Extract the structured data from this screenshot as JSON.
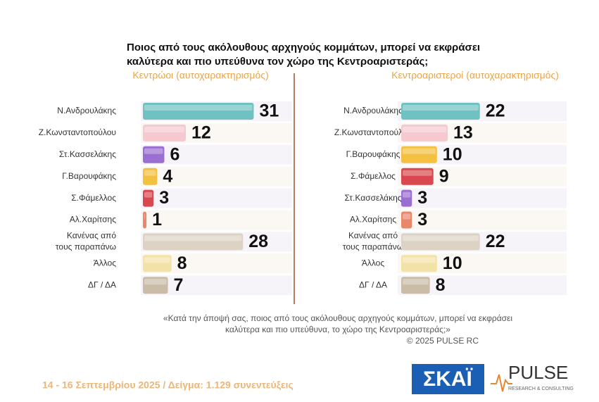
{
  "title": [
    "Ποιος από τους ακόλουθους αρχηγούς κομμάτων, μπορεί να εκφράσει",
    "καλύτερα και πιο υπεύθυνα τον χώρο της Κεντροαριστεράς;"
  ],
  "question": [
    "«Κατά την άποψή σας, ποιος από τους ακόλουθους αρχηγούς κομμάτων, μπορεί να εκφράσει",
    "καλύτερα και πιο υπεύθυνα, το χώρο της Κεντροαριστεράς;»"
  ],
  "copyright": "©  2025  PULSE RC",
  "footer": "14 - 16 Σεπτεμβρίου 2025  /  Δείγμα:  1.129 συνεντεύξεις",
  "logo_skai": "ΣΚΑΪ",
  "logo_pulse": "PULSE",
  "logo_pulse_sub": "RESEARCH & CONSULTING",
  "chart_data": [
    {
      "type": "bar",
      "orientation": "horizontal",
      "title": "Κεντρώοι  (αυτοχαρακτηρισμός)",
      "categories": [
        "Ν.Ανδρουλάκης",
        "Ζ.Κωνσταντοπούλου",
        "Στ.Κασσελάκης",
        "Γ.Βαρουφάκης",
        "Σ.Φάμελλος",
        "Αλ.Χαρίτσης",
        "Κανένας από τους παραπάνω",
        "Άλλος",
        "ΔΓ / ΔΑ"
      ],
      "values": [
        31,
        12,
        6,
        4,
        3,
        1,
        28,
        8,
        7
      ],
      "colors": [
        "#6fc1c2",
        "#f5c9cf",
        "#9b6fd2",
        "#f3c13f",
        "#d9484e",
        "#e8876a",
        "#dcd3c5",
        "#f2e2a6",
        "#cbbca8"
      ]
    },
    {
      "type": "bar",
      "orientation": "horizontal",
      "title": "Κεντροαριστεροί  (αυτοχαρακτηρισμός)",
      "categories": [
        "Ν.Ανδρουλάκης",
        "Ζ.Κωνσταντοπούλου",
        "Γ.Βαρουφάκης",
        "Σ.Φάμελλος",
        "Στ.Κασσελάκης",
        "Αλ.Χαρίτσης",
        "Κανένας από τους παραπάνω",
        "Άλλος",
        "ΔΓ / ΔΑ"
      ],
      "values": [
        22,
        13,
        10,
        9,
        3,
        3,
        22,
        10,
        8
      ],
      "colors": [
        "#6fc1c2",
        "#f5c9cf",
        "#f3c13f",
        "#d9484e",
        "#9b6fd2",
        "#e8876a",
        "#dcd3c5",
        "#f2e2a6",
        "#cbbca8"
      ]
    }
  ]
}
